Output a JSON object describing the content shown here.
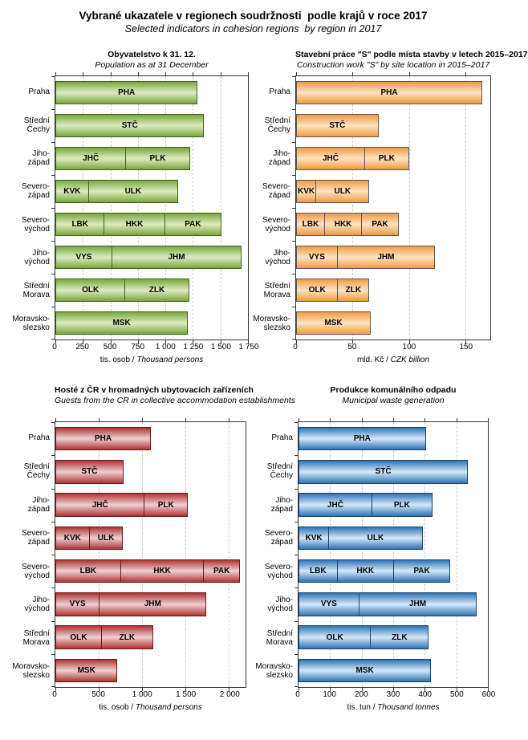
{
  "header": {
    "title": "Vybrané ukazatele v regionech soudržnosti  podle krajů v roce 2017",
    "subtitle": "Selected indicators in cohesion regions  by region in 2017"
  },
  "palette": {
    "green": {
      "edge": "#79a73e",
      "light": "#dcebc1",
      "border": "#3f6317"
    },
    "orange": {
      "edge": "#f09a41",
      "light": "#fce4c3",
      "border": "#595959"
    },
    "red": {
      "edge": "#ae3434",
      "light": "#efd0d0",
      "border": "#641a1a"
    },
    "blue": {
      "edge": "#2e74b5",
      "light": "#d6e8f8",
      "border": "#1b4565"
    }
  },
  "chart_data": [
    {
      "type": "bar",
      "orientation": "horizontal",
      "title": "Obyvatelstvo k 31. 12.",
      "subtitle": "Population as at 31 December",
      "xlabel": "tis. osob / ",
      "xlabel_italic": "Thousand persons",
      "color": "green",
      "xlim": [
        0,
        1750
      ],
      "grid": true,
      "xticks": [
        {
          "value": 0,
          "label": "0"
        },
        {
          "value": 250,
          "label": "250"
        },
        {
          "value": 500,
          "label": "500"
        },
        {
          "value": 750,
          "label": "750"
        },
        {
          "value": 1000,
          "label": "1 000"
        },
        {
          "value": 1250,
          "label": "1 250"
        },
        {
          "value": 1500,
          "label": "1 500"
        },
        {
          "value": 1750,
          "label": "1 750"
        }
      ],
      "rows": [
        {
          "label": "Praha",
          "segments": [
            {
              "code": "PHA",
              "value": 1294
            }
          ]
        },
        {
          "label": "Střední\nČechy",
          "segments": [
            {
              "code": "STČ",
              "value": 1352
            }
          ]
        },
        {
          "label": "Jiho-\nzápad",
          "segments": [
            {
              "code": "JHČ",
              "value": 641
            },
            {
              "code": "PLK",
              "value": 581
            }
          ]
        },
        {
          "label": "Severo-\nzápad",
          "segments": [
            {
              "code": "KVK",
              "value": 295
            },
            {
              "code": "ULK",
              "value": 821
            }
          ]
        },
        {
          "label": "Severo-\nvýchod",
          "segments": [
            {
              "code": "LBK",
              "value": 442
            },
            {
              "code": "HKK",
              "value": 551
            },
            {
              "code": "PAK",
              "value": 518
            }
          ]
        },
        {
          "label": "Jiho-\nvýchod",
          "segments": [
            {
              "code": "VYS",
              "value": 509
            },
            {
              "code": "JHM",
              "value": 1184
            }
          ]
        },
        {
          "label": "Střední\nMorava",
          "segments": [
            {
              "code": "OLK",
              "value": 633
            },
            {
              "code": "ZLK",
              "value": 583
            }
          ]
        },
        {
          "label": "Moravsko-\nslezsko",
          "segments": [
            {
              "code": "MSK",
              "value": 1205
            }
          ]
        }
      ]
    },
    {
      "type": "bar",
      "orientation": "horizontal",
      "title": "Stavební práce \"S\" podle místa stavby v letech 2015–2017",
      "subtitle": "Construction work \"S\" by site location in 2015–2017",
      "xlabel": "mld. Kč / ",
      "xlabel_italic": "CZK billion",
      "color": "orange",
      "xlim": [
        0,
        172
      ],
      "grid": true,
      "xticks": [
        {
          "value": 0,
          "label": "0"
        },
        {
          "value": 50,
          "label": "50"
        },
        {
          "value": 100,
          "label": "100"
        },
        {
          "value": 150,
          "label": "150"
        }
      ],
      "rows": [
        {
          "label": "Praha",
          "segments": [
            {
              "code": "PHA",
              "value": 165
            }
          ]
        },
        {
          "label": "Střední\nČechy",
          "segments": [
            {
              "code": "STČ",
              "value": 73
            }
          ]
        },
        {
          "label": "Jiho-\nzápad",
          "segments": [
            {
              "code": "JHČ",
              "value": 61
            },
            {
              "code": "PLK",
              "value": 39
            }
          ]
        },
        {
          "label": "Severo-\nzápad",
          "segments": [
            {
              "code": "KVK",
              "value": 17
            },
            {
              "code": "ULK",
              "value": 48
            }
          ]
        },
        {
          "label": "Severo-\nvýchod",
          "segments": [
            {
              "code": "LBK",
              "value": 25
            },
            {
              "code": "HKK",
              "value": 33
            },
            {
              "code": "PAK",
              "value": 33
            }
          ]
        },
        {
          "label": "Jiho-\nvýchod",
          "segments": [
            {
              "code": "VYS",
              "value": 36
            },
            {
              "code": "JHM",
              "value": 87
            }
          ]
        },
        {
          "label": "Střední\nMorava",
          "segments": [
            {
              "code": "OLK",
              "value": 37
            },
            {
              "code": "ZLK",
              "value": 28
            }
          ]
        },
        {
          "label": "Moravsko-\nslezsko",
          "segments": [
            {
              "code": "MSK",
              "value": 66
            }
          ]
        }
      ]
    },
    {
      "type": "bar",
      "orientation": "horizontal",
      "title": "Hosté z ČR v hromadných ubytovacích zařízeních",
      "subtitle": "Guests from the CR in collective accommodation establishments",
      "xlabel": "tis. osob / ",
      "xlabel_italic": "Thousand persons",
      "color": "red",
      "xlim": [
        0,
        2190
      ],
      "grid": true,
      "xticks": [
        {
          "value": 0,
          "label": "0"
        },
        {
          "value": 500,
          "label": "500"
        },
        {
          "value": 1000,
          "label": "1 000"
        },
        {
          "value": 1500,
          "label": "1 500"
        },
        {
          "value": 2000,
          "label": "2 000"
        }
      ],
      "rows": [
        {
          "label": "Praha",
          "segments": [
            {
              "code": "PHA",
              "value": 1100
            }
          ]
        },
        {
          "label": "Střední\nČechy",
          "segments": [
            {
              "code": "STČ",
              "value": 785
            }
          ]
        },
        {
          "label": "Jiho-\nzápad",
          "segments": [
            {
              "code": "JHČ",
              "value": 1030
            },
            {
              "code": "PLK",
              "value": 495
            }
          ]
        },
        {
          "label": "Severo-\nzápad",
          "segments": [
            {
              "code": "KVK",
              "value": 390
            },
            {
              "code": "ULK",
              "value": 390
            }
          ]
        },
        {
          "label": "Severo-\nvýchod",
          "segments": [
            {
              "code": "LBK",
              "value": 750
            },
            {
              "code": "HKK",
              "value": 965
            },
            {
              "code": "PAK",
              "value": 410
            }
          ]
        },
        {
          "label": "Jiho-\nvýchod",
          "segments": [
            {
              "code": "VYS",
              "value": 500
            },
            {
              "code": "JHM",
              "value": 1240
            }
          ]
        },
        {
          "label": "Střední\nMorava",
          "segments": [
            {
              "code": "OLK",
              "value": 530
            },
            {
              "code": "ZLK",
              "value": 595
            }
          ]
        },
        {
          "label": "Moravsko-\nslezsko",
          "segments": [
            {
              "code": "MSK",
              "value": 715
            }
          ]
        }
      ]
    },
    {
      "type": "bar",
      "orientation": "horizontal",
      "title": "Produkce komunálního odpadu",
      "subtitle": "Municipal waste generation",
      "xlabel": "tis. tun / ",
      "xlabel_italic": "Thousand tonnes",
      "color": "blue",
      "xlim": [
        0,
        600
      ],
      "grid": true,
      "xticks": [
        {
          "value": 0,
          "label": "0"
        },
        {
          "value": 100,
          "label": "100"
        },
        {
          "value": 200,
          "label": "200"
        },
        {
          "value": 300,
          "label": "300"
        },
        {
          "value": 400,
          "label": "400"
        },
        {
          "value": 500,
          "label": "500"
        },
        {
          "value": 600,
          "label": "600"
        }
      ],
      "rows": [
        {
          "label": "Praha",
          "segments": [
            {
              "code": "PHA",
              "value": 403
            }
          ]
        },
        {
          "label": "Střední\nČechy",
          "segments": [
            {
              "code": "STČ",
              "value": 537
            }
          ]
        },
        {
          "label": "Jiho-\nzápad",
          "segments": [
            {
              "code": "JHČ",
              "value": 233
            },
            {
              "code": "PLK",
              "value": 191
            }
          ]
        },
        {
          "label": "Severo-\nzápad",
          "segments": [
            {
              "code": "KVK",
              "value": 94
            },
            {
              "code": "ULK",
              "value": 299
            }
          ]
        },
        {
          "label": "Severo-\nvýchod",
          "segments": [
            {
              "code": "LBK",
              "value": 121
            },
            {
              "code": "HKK",
              "value": 180
            },
            {
              "code": "PAK",
              "value": 180
            }
          ]
        },
        {
          "label": "Jiho-\nvýchod",
          "segments": [
            {
              "code": "VYS",
              "value": 190
            },
            {
              "code": "JHM",
              "value": 375
            }
          ]
        },
        {
          "label": "Střední\nMorava",
          "segments": [
            {
              "code": "OLK",
              "value": 229
            },
            {
              "code": "ZLK",
              "value": 184
            }
          ]
        },
        {
          "label": "Moravsko-\nslezsko",
          "segments": [
            {
              "code": "MSK",
              "value": 420
            }
          ]
        }
      ]
    }
  ]
}
